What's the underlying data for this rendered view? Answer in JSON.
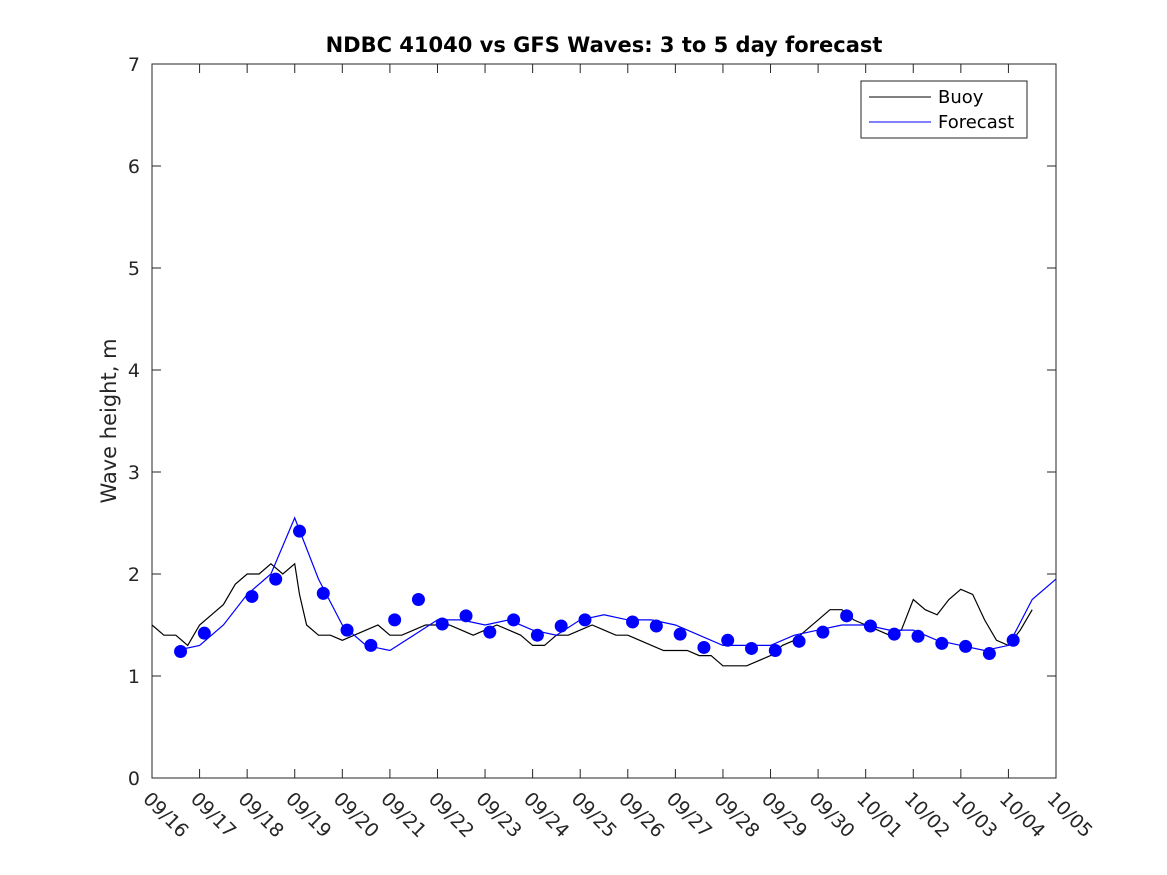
{
  "chart_data": {
    "type": "line",
    "title": "NDBC 41040 vs GFS Waves: 3 to 5 day forecast",
    "xlabel": "",
    "ylabel": "Wave height, m",
    "ylim": [
      0,
      7
    ],
    "yticks": [
      0,
      1,
      2,
      3,
      4,
      5,
      6,
      7
    ],
    "xlim": [
      0,
      19
    ],
    "xtick_labels": [
      "09/16",
      "09/17",
      "09/18",
      "09/19",
      "09/20",
      "09/21",
      "09/22",
      "09/23",
      "09/24",
      "09/25",
      "09/26",
      "09/27",
      "09/28",
      "09/29",
      "09/30",
      "10/01",
      "10/02",
      "10/03",
      "10/04",
      "10/05"
    ],
    "legend": {
      "position": "top-right",
      "entries": [
        "Buoy",
        "Forecast"
      ]
    },
    "colors": {
      "buoy": "#000000",
      "forecast": "#0000ff",
      "markers": "#0000ff"
    },
    "series": [
      {
        "name": "Buoy",
        "x": [
          0,
          0.25,
          0.5,
          0.75,
          1,
          1.25,
          1.5,
          1.75,
          2,
          2.25,
          2.5,
          2.75,
          3,
          3.1,
          3.25,
          3.5,
          3.75,
          4,
          4.25,
          4.5,
          4.75,
          5,
          5.25,
          5.5,
          5.75,
          6,
          6.25,
          6.5,
          6.75,
          7,
          7.25,
          7.5,
          7.75,
          8,
          8.25,
          8.5,
          8.75,
          9,
          9.25,
          9.5,
          9.75,
          10,
          10.25,
          10.5,
          10.75,
          11,
          11.25,
          11.5,
          11.75,
          12,
          12.25,
          12.5,
          12.75,
          13,
          13.25,
          13.5,
          13.75,
          14,
          14.25,
          14.5,
          14.75,
          15,
          15.25,
          15.5,
          15.75,
          16,
          16.25,
          16.5,
          16.75,
          17,
          17.25,
          17.5,
          17.75,
          18,
          18.25,
          18.5
        ],
        "values": [
          1.5,
          1.4,
          1.4,
          1.3,
          1.5,
          1.6,
          1.7,
          1.9,
          2.0,
          2.0,
          2.1,
          2.0,
          2.1,
          1.8,
          1.5,
          1.4,
          1.4,
          1.35,
          1.4,
          1.45,
          1.5,
          1.4,
          1.4,
          1.45,
          1.5,
          1.5,
          1.5,
          1.45,
          1.4,
          1.45,
          1.5,
          1.45,
          1.4,
          1.3,
          1.3,
          1.4,
          1.4,
          1.45,
          1.5,
          1.45,
          1.4,
          1.4,
          1.35,
          1.3,
          1.25,
          1.25,
          1.25,
          1.2,
          1.2,
          1.1,
          1.1,
          1.1,
          1.15,
          1.2,
          1.3,
          1.35,
          1.45,
          1.55,
          1.65,
          1.65,
          1.55,
          1.5,
          1.45,
          1.4,
          1.45,
          1.75,
          1.65,
          1.6,
          1.75,
          1.85,
          1.8,
          1.55,
          1.35,
          1.3,
          1.45,
          1.65
        ]
      },
      {
        "name": "Forecast",
        "x": [
          0.5,
          1,
          1.5,
          2,
          2.5,
          3,
          3.5,
          4,
          4.5,
          5,
          5.5,
          6,
          6.5,
          7,
          7.5,
          8,
          8.5,
          9,
          9.5,
          10,
          10.5,
          11,
          11.5,
          12,
          12.5,
          13,
          13.5,
          14,
          14.5,
          15,
          15.5,
          16,
          16.5,
          17,
          17.5,
          18,
          18.5,
          19
        ],
        "values": [
          1.25,
          1.3,
          1.5,
          1.8,
          2.0,
          2.55,
          1.95,
          1.5,
          1.3,
          1.25,
          1.4,
          1.55,
          1.55,
          1.5,
          1.55,
          1.45,
          1.4,
          1.55,
          1.6,
          1.55,
          1.55,
          1.5,
          1.4,
          1.3,
          1.3,
          1.3,
          1.4,
          1.45,
          1.5,
          1.5,
          1.45,
          1.45,
          1.35,
          1.3,
          1.25,
          1.3,
          1.75,
          1.95
        ]
      },
      {
        "name": "Forecast markers",
        "x": [
          0.6,
          1.1,
          2.1,
          2.6,
          3.1,
          3.6,
          4.1,
          4.6,
          5.1,
          5.6,
          6.1,
          6.6,
          7.1,
          7.6,
          8.1,
          8.6,
          9.1,
          10.1,
          10.6,
          11.1,
          11.6,
          12.1,
          12.6,
          13.1,
          13.6,
          14.1,
          14.6,
          15.1,
          15.6,
          16.1,
          16.6,
          17.1,
          17.6,
          18.1
        ],
        "values": [
          1.24,
          1.42,
          1.78,
          1.95,
          2.42,
          1.81,
          1.45,
          1.3,
          1.55,
          1.75,
          1.51,
          1.59,
          1.43,
          1.55,
          1.4,
          1.49,
          1.55,
          1.53,
          1.49,
          1.41,
          1.28,
          1.35,
          1.27,
          1.25,
          1.34,
          1.43,
          1.59,
          1.49,
          1.41,
          1.39,
          1.32,
          1.29,
          1.22,
          1.35
        ]
      }
    ]
  }
}
